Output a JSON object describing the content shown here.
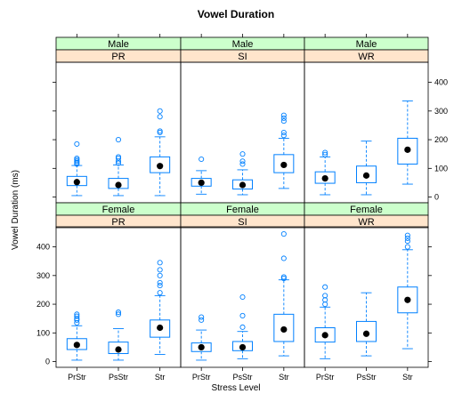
{
  "chart_data": {
    "type": "box",
    "title": "Vowel Duration",
    "xlabel": "Stress Level",
    "ylabel": "Vowel Duration (ms)",
    "ylim": [
      -20,
      470
    ],
    "yticks": [
      0,
      100,
      200,
      300,
      400
    ],
    "categories": [
      "PrStr",
      "PsStr",
      "Str"
    ],
    "colors": {
      "box": "#0080ff",
      "sex_strip": "#ccffcc",
      "cond_strip": "#ffe5cc",
      "median_dot": "#000000"
    },
    "panels": [
      {
        "sex": "Male",
        "condition": "PR",
        "boxes": [
          {
            "category": "PrStr",
            "q1": 40,
            "median": 52,
            "q3": 72,
            "whisker_low": 5,
            "whisker_high": 110,
            "outliers": [
              115,
              120,
              125,
              130,
              135,
              185
            ]
          },
          {
            "category": "PsStr",
            "q1": 30,
            "median": 42,
            "q3": 65,
            "whisker_low": 5,
            "whisker_high": 112,
            "outliers": [
              118,
              125,
              135,
              140,
              200
            ]
          },
          {
            "category": "Str",
            "q1": 85,
            "median": 108,
            "q3": 140,
            "whisker_low": 5,
            "whisker_high": 210,
            "outliers": [
              225,
              230,
              280,
              300
            ]
          }
        ]
      },
      {
        "sex": "Male",
        "condition": "SI",
        "boxes": [
          {
            "category": "PrStr",
            "q1": 38,
            "median": 50,
            "q3": 65,
            "whisker_low": 10,
            "whisker_high": 92,
            "outliers": [
              132
            ]
          },
          {
            "category": "PsStr",
            "q1": 28,
            "median": 42,
            "q3": 60,
            "whisker_low": 8,
            "whisker_high": 95,
            "outliers": [
              115,
              125,
              150
            ]
          },
          {
            "category": "Str",
            "q1": 85,
            "median": 112,
            "q3": 148,
            "whisker_low": 30,
            "whisker_high": 205,
            "outliers": [
              215,
              225,
              265,
              275,
              285
            ]
          }
        ]
      },
      {
        "sex": "Male",
        "condition": "WR",
        "boxes": [
          {
            "category": "PrStr",
            "q1": 48,
            "median": 65,
            "q3": 88,
            "whisker_low": 8,
            "whisker_high": 140,
            "outliers": [
              148,
              155
            ]
          },
          {
            "category": "PsStr",
            "q1": 50,
            "median": 75,
            "q3": 108,
            "whisker_low": 8,
            "whisker_high": 195,
            "outliers": []
          },
          {
            "category": "Str",
            "q1": 115,
            "median": 165,
            "q3": 205,
            "whisker_low": 45,
            "whisker_high": 335,
            "outliers": []
          }
        ]
      },
      {
        "sex": "Female",
        "condition": "PR",
        "boxes": [
          {
            "category": "PrStr",
            "q1": 42,
            "median": 58,
            "q3": 80,
            "whisker_low": 5,
            "whisker_high": 125,
            "outliers": [
              135,
              145,
              150,
              158,
              165
            ]
          },
          {
            "category": "PsStr",
            "q1": 28,
            "median": 42,
            "q3": 68,
            "whisker_low": 5,
            "whisker_high": 115,
            "outliers": [
              165,
              172
            ]
          },
          {
            "category": "Str",
            "q1": 85,
            "median": 118,
            "q3": 145,
            "whisker_low": 25,
            "whisker_high": 230,
            "outliers": [
              240,
              265,
              275,
              300,
              320,
              345
            ]
          }
        ]
      },
      {
        "sex": "Female",
        "condition": "SI",
        "boxes": [
          {
            "category": "PrStr",
            "q1": 35,
            "median": 50,
            "q3": 65,
            "whisker_low": 5,
            "whisker_high": 110,
            "outliers": [
              145,
              155
            ]
          },
          {
            "category": "PsStr",
            "q1": 38,
            "median": 50,
            "q3": 70,
            "whisker_low": 10,
            "whisker_high": 105,
            "outliers": [
              120,
              160,
              225
            ]
          },
          {
            "category": "Str",
            "q1": 70,
            "median": 112,
            "q3": 165,
            "whisker_low": 20,
            "whisker_high": 285,
            "outliers": [
              290,
              295,
              360,
              445
            ]
          }
        ]
      },
      {
        "sex": "Female",
        "condition": "WR",
        "boxes": [
          {
            "category": "PrStr",
            "q1": 68,
            "median": 92,
            "q3": 118,
            "whisker_low": 10,
            "whisker_high": 190,
            "outliers": [
              200,
              215,
              230,
              260
            ]
          },
          {
            "category": "PsStr",
            "q1": 70,
            "median": 97,
            "q3": 140,
            "whisker_low": 20,
            "whisker_high": 240,
            "outliers": []
          },
          {
            "category": "Str",
            "q1": 170,
            "median": 215,
            "q3": 260,
            "whisker_low": 45,
            "whisker_high": 390,
            "outliers": [
              400,
              420,
              430,
              440
            ]
          }
        ]
      }
    ]
  }
}
